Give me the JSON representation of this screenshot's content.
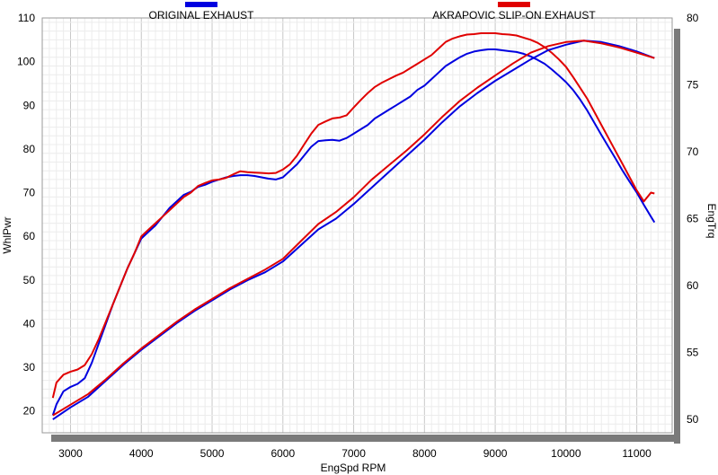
{
  "chart_data": {
    "type": "line",
    "xlabel": "EngSpd  RPM",
    "ylabel_left": "WhlPwr",
    "ylabel_right": "EngTrq",
    "xlim": [
      2600,
      11500
    ],
    "ylim_left": [
      15,
      110
    ],
    "ylim_right": [
      49,
      80
    ],
    "x_ticks": [
      3000,
      4000,
      5000,
      6000,
      7000,
      8000,
      9000,
      10000,
      11000
    ],
    "y_left_ticks": [
      20,
      30,
      40,
      50,
      60,
      70,
      80,
      90,
      100,
      110
    ],
    "y_right_ticks": [
      50,
      55,
      60,
      65,
      70,
      75,
      80
    ],
    "grid": true,
    "legend_position": "top",
    "series": [
      {
        "name": "ORIGINAL EXHAUST",
        "color": "#0000e0",
        "kind": "power",
        "axis": "left",
        "x": [
          2750,
          2800,
          2900,
          3000,
          3100,
          3200,
          3300,
          3400,
          3500,
          3600,
          3700,
          3800,
          3900,
          4000,
          4100,
          4200,
          4300,
          4400,
          4500,
          4600,
          4700,
          4800,
          4900,
          5000,
          5100,
          5200,
          5300,
          5400,
          5500,
          5600,
          5700,
          5800,
          5900,
          6000,
          6100,
          6200,
          6300,
          6400,
          6500,
          6600,
          6700,
          6800,
          6900,
          7000,
          7100,
          7200,
          7300,
          7400,
          7500,
          7600,
          7700,
          7800,
          7900,
          8000,
          8100,
          8200,
          8300,
          8400,
          8500,
          8600,
          8700,
          8800,
          8900,
          9000,
          9100,
          9200,
          9300,
          9400,
          9500,
          9600,
          9700,
          9800,
          9900,
          10000,
          10100,
          10200,
          10300,
          10400,
          10500,
          10600,
          10700,
          10800,
          10900,
          11000,
          11100,
          11200,
          11250
        ],
        "y": [
          19,
          21.5,
          24.5,
          25.5,
          26.2,
          27.5,
          31,
          35.5,
          40,
          44.5,
          48.5,
          52.5,
          56,
          59.5,
          61,
          62.5,
          64.5,
          66.5,
          68,
          69.5,
          70.2,
          71.3,
          71.8,
          72.5,
          73,
          73.5,
          73.8,
          74,
          74,
          73.8,
          73.5,
          73.2,
          73,
          73.5,
          75,
          76.5,
          78.5,
          80.5,
          81.8,
          82,
          82.1,
          81.9,
          82.5,
          83.5,
          84.5,
          85.5,
          87,
          88,
          89,
          90,
          91,
          92,
          93.5,
          94.5,
          96,
          97.5,
          99,
          100,
          101,
          101.8,
          102.3,
          102.6,
          102.8,
          102.8,
          102.6,
          102.4,
          102.2,
          101.8,
          101.2,
          100.4,
          99.5,
          98.2,
          96.8,
          95.3,
          93.5,
          91.3,
          88.8,
          86,
          83.2,
          80.5,
          77.8,
          75,
          72.5,
          70,
          67.2,
          64.5,
          63.2
        ]
      },
      {
        "name": "AKRAPOVIC SLIP-ON EXHAUST",
        "color": "#e00000",
        "kind": "power",
        "axis": "left",
        "x": [
          2750,
          2800,
          2900,
          3000,
          3100,
          3200,
          3300,
          3400,
          3500,
          3600,
          3700,
          3800,
          3900,
          4000,
          4100,
          4200,
          4300,
          4400,
          4500,
          4600,
          4700,
          4800,
          4900,
          5000,
          5100,
          5200,
          5300,
          5400,
          5500,
          5600,
          5700,
          5800,
          5900,
          6000,
          6100,
          6200,
          6300,
          6400,
          6500,
          6600,
          6700,
          6800,
          6900,
          7000,
          7100,
          7200,
          7300,
          7400,
          7500,
          7600,
          7700,
          7800,
          7900,
          8000,
          8100,
          8200,
          8300,
          8400,
          8500,
          8600,
          8700,
          8800,
          8900,
          9000,
          9100,
          9200,
          9300,
          9400,
          9500,
          9600,
          9700,
          9800,
          9900,
          10000,
          10100,
          10200,
          10300,
          10400,
          10500,
          10600,
          10700,
          10800,
          10900,
          11000,
          11100,
          11200,
          11250
        ],
        "y": [
          23,
          26.5,
          28.3,
          29,
          29.5,
          30.5,
          33,
          36.5,
          40.5,
          44.5,
          48.5,
          52.5,
          56,
          60,
          61.5,
          63,
          64.5,
          66,
          67.5,
          69,
          70,
          71.5,
          72.2,
          72.8,
          73,
          73.4,
          74.2,
          74.9,
          74.7,
          74.6,
          74.5,
          74.4,
          74.5,
          75.3,
          76.5,
          78.5,
          81,
          83.5,
          85.5,
          86.3,
          87,
          87.2,
          87.7,
          89.5,
          91.2,
          92.8,
          94.2,
          95.2,
          96,
          96.8,
          97.5,
          98.5,
          99.5,
          100.5,
          101.5,
          103,
          104.5,
          105.3,
          105.8,
          106.2,
          106.3,
          106.5,
          106.5,
          106.5,
          106.3,
          106.2,
          106,
          105.5,
          105,
          104.3,
          103.3,
          102,
          100.5,
          98.8,
          96.5,
          94,
          91.5,
          88.5,
          85.5,
          82.5,
          79.5,
          76.5,
          73.5,
          70.5,
          68,
          70,
          69.8
        ]
      },
      {
        "name": "ORIGINAL EXHAUST",
        "color": "#0000e0",
        "kind": "torque",
        "axis": "right",
        "x": [
          2750,
          3000,
          3250,
          3500,
          3750,
          4000,
          4250,
          4500,
          4750,
          5000,
          5250,
          5500,
          5750,
          6000,
          6250,
          6500,
          6750,
          7000,
          7250,
          7500,
          7750,
          8000,
          8250,
          8500,
          8750,
          9000,
          9250,
          9500,
          9750,
          10000,
          10250,
          10500,
          10750,
          11000,
          11250
        ],
        "y": [
          50,
          50.9,
          51.7,
          52.9,
          54.1,
          55.2,
          56.2,
          57.2,
          58.1,
          58.9,
          59.7,
          60.4,
          61.0,
          61.8,
          63.0,
          64.2,
          65.0,
          66.1,
          67.3,
          68.5,
          69.7,
          70.9,
          72.2,
          73.4,
          74.4,
          75.3,
          76.1,
          76.9,
          77.6,
          78.0,
          78.3,
          78.2,
          77.9,
          77.5,
          77.0
        ]
      },
      {
        "name": "AKRAPOVIC SLIP-ON EXHAUST",
        "color": "#e00000",
        "kind": "torque",
        "axis": "right",
        "x": [
          2750,
          3000,
          3250,
          3500,
          3750,
          4000,
          4250,
          4500,
          4750,
          5000,
          5250,
          5500,
          5750,
          6000,
          6250,
          6500,
          6750,
          7000,
          7250,
          7500,
          7750,
          8000,
          8250,
          8500,
          8750,
          9000,
          9250,
          9500,
          9750,
          10000,
          10250,
          10500,
          10750,
          11000,
          11250
        ],
        "y": [
          50.3,
          51.1,
          51.9,
          53.0,
          54.2,
          55.3,
          56.3,
          57.3,
          58.2,
          59.0,
          59.8,
          60.5,
          61.2,
          62.0,
          63.3,
          64.6,
          65.5,
          66.6,
          67.9,
          69.0,
          70.1,
          71.3,
          72.6,
          73.8,
          74.8,
          75.7,
          76.6,
          77.4,
          77.9,
          78.2,
          78.3,
          78.1,
          77.8,
          77.4,
          77.0
        ]
      }
    ]
  }
}
